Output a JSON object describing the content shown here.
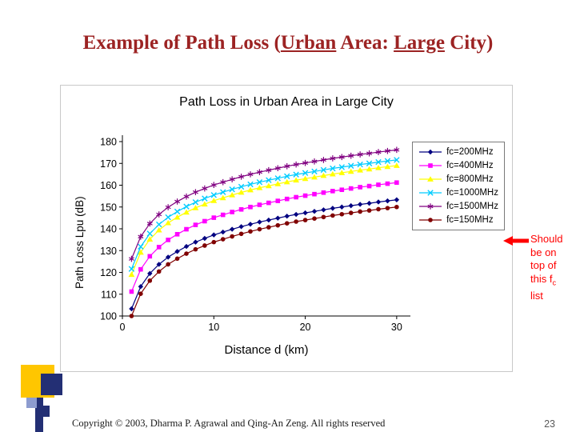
{
  "slide": {
    "title": {
      "seg1": "Example of Path Loss (",
      "seg2": "Urban",
      "seg3": " Area: ",
      "seg4": "Large",
      "seg5": " City)"
    },
    "annotation": {
      "line1": "Should",
      "line2": "be on",
      "line3": "top of",
      "line4_pre": "this f",
      "line4_sub": "c",
      "line5": "list"
    },
    "footer": {
      "copyright": "Copyright © 2003, Dharma P. Agrawal and Qing-An Zeng. All rights reserved",
      "page": "23"
    },
    "colors": {
      "title_text": "#9C2323",
      "annotation_text": "#FF0000",
      "decor_yellow": "#FFC600",
      "decor_navy": "#232F74",
      "decor_lightblue": "#8D9CCF"
    }
  },
  "chart_data": {
    "type": "line",
    "title": "Path Loss in Urban Area in Large City",
    "xlabel": "Distance d (km)",
    "ylabel": "Path Loss Lpu (dB)",
    "xlim": [
      0,
      30
    ],
    "ylim": [
      100,
      180
    ],
    "xticks": [
      0,
      10,
      20,
      30
    ],
    "yticks": [
      100,
      110,
      120,
      130,
      140,
      150,
      160,
      170,
      180
    ],
    "grid": "off",
    "legend_position": "right",
    "x": [
      1,
      2,
      3,
      4,
      5,
      6,
      7,
      8,
      9,
      10,
      11,
      12,
      13,
      14,
      15,
      16,
      17,
      18,
      19,
      20,
      21,
      22,
      23,
      24,
      25,
      26,
      27,
      28,
      29,
      30
    ],
    "series": [
      {
        "name": "fc=200MHz",
        "color": "#000080",
        "marker": "diamond",
        "values": [
          103.3,
          113.5,
          119.5,
          123.7,
          127.0,
          129.6,
          131.9,
          133.9,
          135.6,
          137.2,
          138.5,
          139.8,
          141.0,
          142.1,
          143.1,
          144.0,
          144.9,
          145.8,
          146.6,
          147.3,
          148.0,
          148.7,
          149.4,
          150.0,
          150.6,
          151.2,
          151.7,
          152.3,
          152.8,
          153.3
        ]
      },
      {
        "name": "fc=400MHz",
        "color": "#FF00FF",
        "marker": "square",
        "values": [
          111.2,
          121.4,
          127.4,
          131.6,
          134.9,
          137.5,
          139.8,
          141.8,
          143.5,
          145.1,
          146.4,
          147.7,
          148.9,
          150.0,
          151.0,
          151.9,
          152.8,
          153.7,
          154.5,
          155.2,
          155.9,
          156.6,
          157.3,
          157.9,
          158.5,
          159.1,
          159.6,
          160.2,
          160.7,
          161.2
        ]
      },
      {
        "name": "fc=800MHz",
        "color": "#FFFF00",
        "marker": "triangle",
        "values": [
          119.0,
          129.2,
          135.2,
          139.4,
          142.7,
          145.3,
          147.6,
          149.6,
          151.3,
          152.9,
          154.2,
          155.5,
          156.7,
          157.8,
          158.8,
          159.7,
          160.6,
          161.5,
          162.3,
          163.0,
          163.7,
          164.4,
          165.1,
          165.7,
          166.3,
          166.9,
          167.4,
          168.0,
          168.5,
          169.0
        ]
      },
      {
        "name": "fc=1000MHz",
        "color": "#00CCFF",
        "marker": "x",
        "values": [
          121.6,
          131.8,
          137.8,
          142.0,
          145.3,
          147.9,
          150.2,
          152.2,
          153.9,
          155.5,
          156.8,
          158.1,
          159.3,
          160.4,
          161.4,
          162.3,
          163.2,
          164.1,
          164.9,
          165.6,
          166.3,
          167.0,
          167.7,
          168.3,
          168.9,
          169.5,
          170.0,
          170.6,
          171.1,
          171.6
        ]
      },
      {
        "name": "fc=1500MHz",
        "color": "#800080",
        "marker": "asterisk",
        "values": [
          126.2,
          136.4,
          142.4,
          146.6,
          149.9,
          152.5,
          154.8,
          156.8,
          158.5,
          160.1,
          161.4,
          162.7,
          163.9,
          165.0,
          166.0,
          166.9,
          167.8,
          168.7,
          169.5,
          170.2,
          170.9,
          171.6,
          172.3,
          172.9,
          173.5,
          174.1,
          174.6,
          175.2,
          175.7,
          176.2
        ]
      },
      {
        "name": "fc=150MHz",
        "color": "#800000",
        "marker": "circle",
        "values": [
          100.0,
          110.2,
          116.2,
          120.4,
          123.7,
          126.3,
          128.6,
          130.6,
          132.3,
          133.9,
          135.2,
          136.5,
          137.7,
          138.8,
          139.8,
          140.7,
          141.6,
          142.5,
          143.3,
          144.0,
          144.7,
          145.4,
          146.1,
          146.7,
          147.3,
          147.9,
          148.4,
          149.0,
          149.5,
          150.0
        ]
      }
    ]
  }
}
